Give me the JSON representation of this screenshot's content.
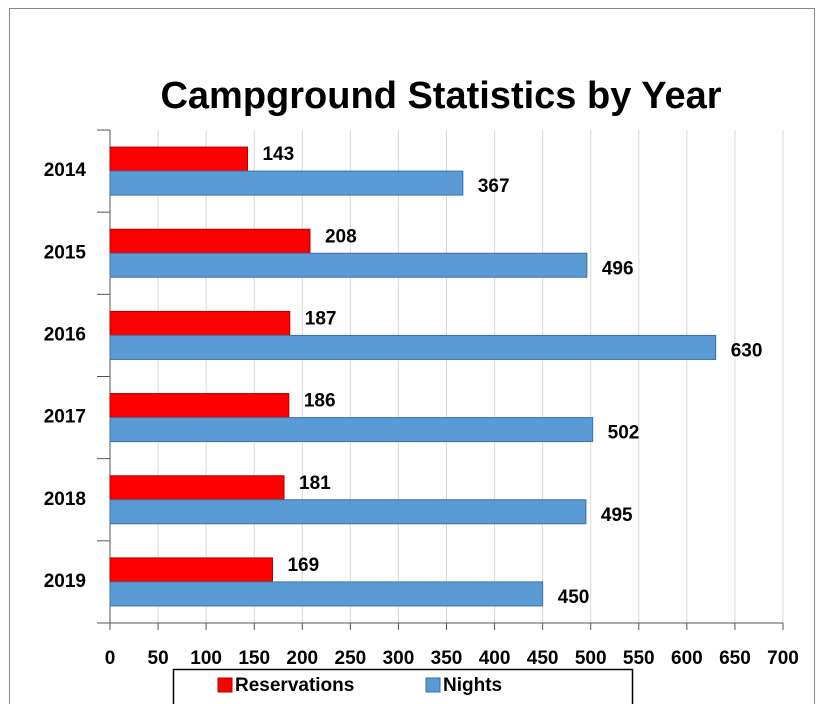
{
  "chart_data": {
    "type": "bar",
    "orientation": "horizontal",
    "title": "Campground Statistics by Year",
    "categories": [
      "2014",
      "2015",
      "2016",
      "2017",
      "2018",
      "2019"
    ],
    "series": [
      {
        "name": "Reservations",
        "color": "#ff0000",
        "values": [
          143,
          208,
          187,
          186,
          181,
          169
        ]
      },
      {
        "name": "Nights",
        "color": "#5b9bd5",
        "values": [
          367,
          496,
          630,
          502,
          495,
          450
        ]
      }
    ],
    "xlim": [
      0,
      700
    ],
    "xticks": [
      0,
      50,
      100,
      150,
      200,
      250,
      300,
      350,
      400,
      450,
      500,
      550,
      600,
      650,
      700
    ],
    "grid": true,
    "legend": "bottom"
  }
}
